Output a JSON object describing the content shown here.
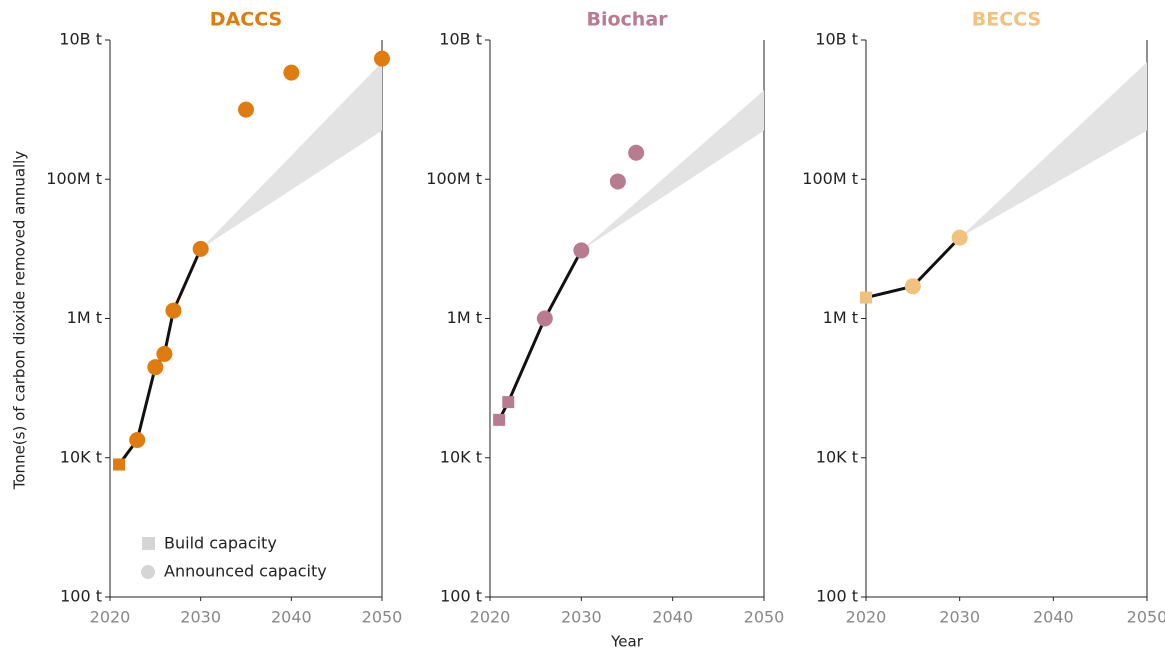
{
  "chart_data": [
    {
      "type": "scatter",
      "title": "DACCS",
      "color": "#e07b0f",
      "log_y": true,
      "xlim": [
        2020,
        2050
      ],
      "xticks": [
        2020,
        2030,
        2040,
        2050
      ],
      "ylim": [
        100,
        10000000000
      ],
      "yticks": [
        {
          "value": 100,
          "label": "100 t"
        },
        {
          "value": 10000,
          "label": "10K t"
        },
        {
          "value": 1000000,
          "label": "1M t"
        },
        {
          "value": 100000000,
          "label": "100M t"
        },
        {
          "value": 10000000000,
          "label": "10B t"
        }
      ],
      "build": {
        "x": [
          2021
        ],
        "values": [
          8000
        ]
      },
      "announced": {
        "x": [
          2023,
          2025,
          2026,
          2027,
          2030,
          2035,
          2040,
          2050
        ],
        "values": [
          18000,
          200000,
          310000,
          1300000,
          10000000,
          1000000000,
          3400000000,
          5400000000
        ]
      },
      "band": {
        "x": [
          2030,
          2050
        ],
        "lower": [
          10000000,
          500000000
        ],
        "upper": [
          10000000,
          4800000000
        ]
      }
    },
    {
      "type": "scatter",
      "title": "Biochar",
      "color": "#b97b90",
      "log_y": true,
      "xlim": [
        2020,
        2050
      ],
      "xticks": [
        2020,
        2030,
        2040,
        2050
      ],
      "ylim": [
        100,
        10000000000
      ],
      "yticks": [
        {
          "value": 100,
          "label": "100 t"
        },
        {
          "value": 10000,
          "label": "10K t"
        },
        {
          "value": 1000000,
          "label": "1M t"
        },
        {
          "value": 100000000,
          "label": "100M t"
        },
        {
          "value": 10000000000,
          "label": "10B t"
        }
      ],
      "build": {
        "x": [
          2021,
          2022
        ],
        "values": [
          35000,
          63000
        ]
      },
      "announced": {
        "x": [
          2026,
          2030,
          2034,
          2036
        ],
        "values": [
          1000000,
          9500000,
          93000000,
          240000000
        ]
      },
      "band": {
        "x": [
          2030,
          2050
        ],
        "lower": [
          9500000,
          500000000
        ],
        "upper": [
          9500000,
          1900000000
        ]
      }
    },
    {
      "type": "scatter",
      "title": "BECCS",
      "color": "#f0c27d",
      "log_y": true,
      "xlim": [
        2020,
        2050
      ],
      "xticks": [
        2020,
        2030,
        2040,
        2050
      ],
      "ylim": [
        100,
        10000000000
      ],
      "yticks": [
        {
          "value": 100,
          "label": "100 t"
        },
        {
          "value": 10000,
          "label": "10K t"
        },
        {
          "value": 1000000,
          "label": "1M t"
        },
        {
          "value": 100000000,
          "label": "100M t"
        },
        {
          "value": 10000000000,
          "label": "10B t"
        }
      ],
      "build": {
        "x": [
          2020
        ],
        "values": [
          2000000
        ]
      },
      "announced": {
        "x": [
          2025,
          2030
        ],
        "values": [
          2900000,
          14500000
        ]
      },
      "band": {
        "x": [
          2030,
          2050
        ],
        "lower": [
          14500000,
          500000000
        ],
        "upper": [
          14500000,
          4800000000
        ]
      }
    }
  ],
  "ylabel": "Tonne(s) of carbon dioxide removed annually",
  "xlabel": "Year",
  "legend": [
    "Build capacity",
    "Announced capacity"
  ]
}
